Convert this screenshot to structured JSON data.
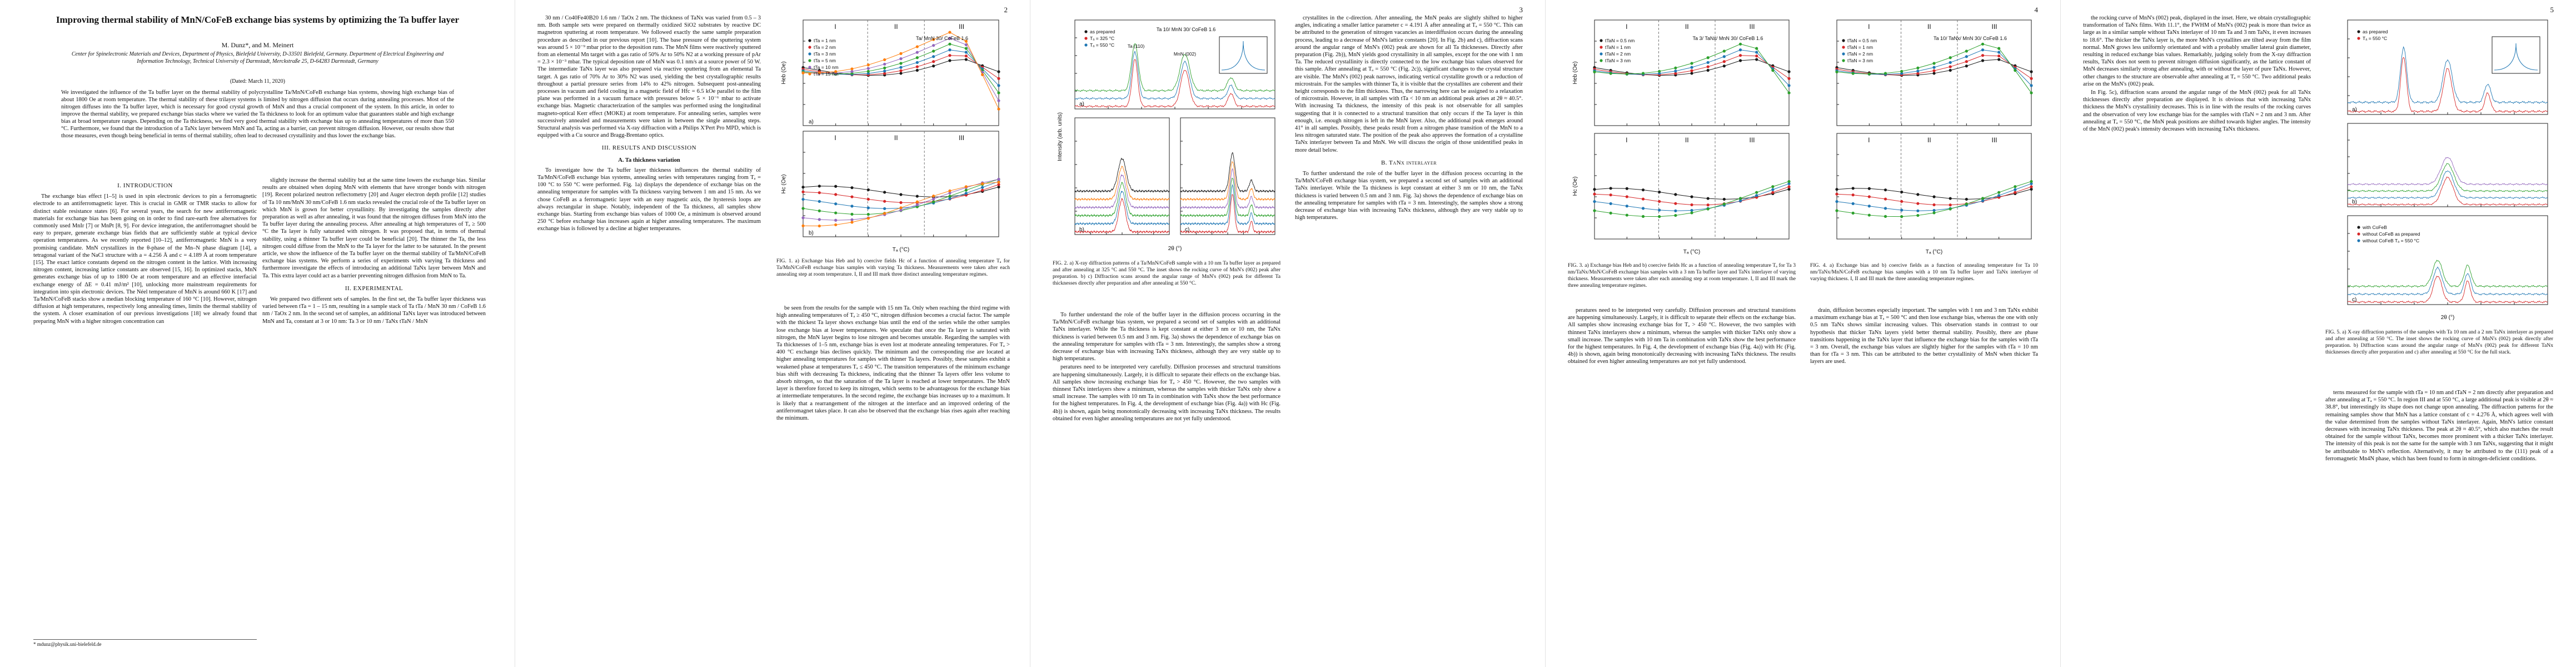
{
  "arxiv_id": "arXiv:2005.05166v1 [cond-mat.mtrl-sci] 11 May 2020",
  "page_numbers": [
    "2",
    "3",
    "4",
    "5"
  ],
  "page1": {
    "title": "Improving thermal stability of MnN/CoFeB exchange bias systems by optimizing the Ta buffer layer",
    "authors": "M. Dunz*, and M. Meinert",
    "affiliations": "Center for Spinelectronic Materials and Devices, Department of Physics, Bielefeld University, D-33501 Bielefeld, Germany. Department of Electrical Engineering and Information Technology, Technical University of Darmstadt, Merckstraße 25, D-64283 Darmstadt, Germany",
    "dated": "(Dated: March 11, 2020)",
    "abstract": "We investigated the influence of the Ta buffer layer on the thermal stability of polycrystalline Ta/MnN/CoFeB exchange bias systems, showing high exchange bias of about 1800 Oe at room temperature. The thermal stability of these trilayer systems is limited by nitrogen diffusion that occurs during annealing processes. Most of the nitrogen diffuses into the Ta buffer layer, which is necessary for good crystal growth of MnN and thus a crucial component of the system. In this article, in order to improve the thermal stability, we prepared exchange bias stacks where we varied the Ta thickness to look for an optimum value that guarantees stable and high exchange bias at broad temperature ranges. Depending on the Ta thickness, we find very good thermal stability with exchange bias up to annealing temperatures of more than 550 °C. Furthermore, we found that the introduction of a TaNx layer between MnN and Ta, acting as a barrier, can prevent nitrogen diffusion. However, our results show that those measures, even though being beneficial in terms of thermal stability, often lead to decreased crystallinity and thus lower the exchange bias.",
    "sec_intro": "I. INTRODUCTION",
    "intro_p1": "The exchange bias effect [1–5] is used in spin electronic devices to pin a ferromagnetic electrode to an antiferromagnetic layer. This is crucial in GMR or TMR stacks to allow for distinct stable resistance states [6]. For several years, the search for new antiferromagnetic materials for exchange bias has been going on in order to find rare-earth free alternatives for commonly used MnIr [7] or MnPt [8, 9]. For device integration, the antiferromagnet should be easy to prepare, generate exchange bias fields that are sufficiently stable at typical device operation temperatures. As we recently reported [10–12], antiferromagnetic MnN is a very promising candidate. MnN crystallizes in the θ-phase of the Mn–N phase diagram [14], a tetragonal variant of the NaCl structure with a = 4.256 Å and c = 4.189 Å at room temperature [15]. The exact lattice constants depend on the nitrogen content in the lattice. With increasing nitrogen content, increasing lattice constants are observed [15, 16]. In optimized stacks, MnN generates exchange bias of up to 1800 Oe at room temperature and an effective interfacial exchange energy of ΔE = 0.41 mJ/m² [10], unlocking more mainstream requirements for integration into spin electronic devices. The Néel temperature of MnN is around 660 K [17] and Ta/MnN/CoFeB stacks show a median blocking temperature of 160 °C [10]. However, nitrogen diffusion at high temperatures, respectively long annealing times, limits the thermal stability of the system. A closer examination of our previous investigations [18] we already found that preparing MnN with a higher nitrogen concentration can",
    "col2_text": "slightly increase the thermal stability but at the same time lowers the exchange bias. Similar results are obtained when doping MnN with elements that have stronger bonds with nitrogen [19]. Recent polarized neutron reflectometry [20] and Auger electron depth profile [12] studies of Ta 10 nm/MnN 30 nm/CoFeB 1.6 nm stacks revealed the crucial role of the Ta buffer layer on which MnN is grown for better crystallinity. By investigating the samples directly after preparation as well as after annealing, it was found that the nitrogen diffuses from MnN into the Ta buffer layer during the annealing process. After annealing at high temperatures of Tₐ ≥ 500 °C the Ta layer is fully saturated with nitrogen. It was proposed that, in terms of thermal stability, using a thinner Ta buffer layer could be beneficial [20]. The thinner the Ta, the less nitrogen could diffuse from the MnN to the Ta layer for the latter to be saturated. In the present article, we show the influence of the Ta buffer layer on the thermal stability of Ta/MnN/CoFeB exchange bias systems. We perform a series of experiments with varying Ta thickness and furthermore investigate the effects of introducing an additional TaNx layer between MnN and Ta. This extra layer could act as a barrier preventing nitrogen diffusion from MnN to Ta.",
    "sec_exp": "II. EXPERIMENTAL",
    "exp_p1": "We prepared two different sets of samples. In the first set, the Ta buffer layer thickness was varied between tTa = 1 – 15 nm, resulting in a sample stack of Ta tTa / MnN 30 nm / CoFeB 1.6 nm / TaOx 2 nm. In the second set of samples, an additional TaNx layer was introduced between MnN and Ta, constant at 3 or 10 nm: Ta 3 or 10 nm / TaNx tTaN / MnN"
  },
  "page2": {
    "col1_text": "30 nm / Co40Fe40B20 1.6 nm / TaOx 2 nm. The thickness of TaNx was varied from 0.5 – 3 nm. Both sample sets were prepared on thermally oxidized SiO2 substrates by reactive DC magnetron sputtering at room temperature. We followed exactly the same sample preparation procedure as described in our previous report [10]. The base pressure of the sputtering system was around 5 × 10⁻⁹ mbar prior to the deposition runs. The MnN films were reactively sputtered from an elemental Mn target with a gas ratio of 50% Ar to 50% N2 at a working pressure of pAr = 2.3 × 10⁻³ mbar. The typical deposition rate of MnN was 0.1 nm/s at a source power of 50 W. The intermediate TaNx layer was also prepared via reactive sputtering from an elemental Ta target. A gas ratio of 70% Ar to 30% N2 was used, yielding the best crystallographic results throughout a partial pressure series from 14% to 42% nitrogen. Subsequent post-annealing processes in vacuum and field cooling in a magnetic field of Hfc = 6.5 kOe parallel to the film plane was performed in a vacuum furnace with pressures below 5 × 10⁻⁶ mbar to activate exchange bias. Magnetic characterization of the samples was performed using the longitudinal magneto-optical Kerr effect (MOKE) at room temperature. For annealing series, samples were successively annealed and measurements were taken in between the single annealing steps. Structural analysis was performed via X-ray diffraction with a Philips X'Pert Pro MPD, which is equipped with a Cu source and Bragg-Brentano optics.",
    "sec_results": "III. RESULTS AND DISCUSSION",
    "subsec_a": "A. Ta thickness variation",
    "col1_text2": "To investigate how the Ta buffer layer thickness influences the thermal stability of Ta/MnN/CoFeB exchange bias systems, annealing series with temperatures ranging from Tₐ = 100 °C to 550 °C were performed. Fig. 1a) displays the dependence of exchange bias on the annealing temperature for samples with Ta thickness varying between 1 nm and 15 nm. As we chose CoFeB as a ferromagnetic layer with an easy magnetic axis, the hysteresis loops are always rectangular in shape. Notably, independent of the Ta thickness, all samples show exchange bias. Starting from exchange bias values of 1000 Oe, a minimum is observed around 250 °C before exchange bias increases again at higher annealing temperatures. The maximum exchange bias is followed by a decline at higher temperatures.",
    "col2_text": "be seen from the results for the sample with 15 nm Ta. Only when reaching the third regime with high annealing temperatures of Tₐ ≥ 450 °C, nitrogen diffusion becomes a crucial factor. The sample with the thickest Ta layer shows exchange bias until the end of the series while the other samples lose exchange bias at lower temperatures. We speculate that once the Ta layer is saturated with nitrogen, the MnN layer begins to lose nitrogen and becomes unstable. Regarding the samples with Ta thicknesses of 1–5 nm, exchange bias is even lost at moderate annealing temperatures. For Tₐ > 400 °C exchange bias declines quickly. The minimum and the corresponding rise are located at higher annealing temperatures for samples with thinner Ta layers. Possibly, these samples exhibit a weakened phase at temperatures Tₐ ≤ 450 °C. The transition temperatures of the minimum exchange bias shift with decreasing Ta thickness, indicating that the thinner Ta layers offer less volume to absorb nitrogen, so that the saturation of the Ta layer is reached at lower temperatures. The MnN layer is therefore forced to keep its nitrogen, which seems to be advantageous for the exchange bias at intermediate temperatures. In the second regime, the exchange bias increases up to a maximum. It is likely that a rearrangement of the nitrogen at the interface and an improved ordering of the antiferromagnet takes place. It can also be observed that the exchange bias rises again after reaching the minimum."
  },
  "page3": {
    "col1_text": "crystallites in the c-direction. After annealing, the MnN peaks are slightly shifted to higher angles, indicating a smaller lattice parameter c = 4.191 Å after annealing at Tₐ = 550 °C. This can be attributed to the generation of nitrogen vacancies as interdiffusion occurs during the annealing process, leading to a decrease of MnN's lattice constants [20]. In Fig. 2b) and c), diffraction scans around the angular range of MnN's (002) peak are shown for all Ta thicknesses. Directly after preparation (Fig. 2b)), MnN yields good crystallinity in all samples, except for the one with 1 nm Ta. The reduced crystallinity is directly connected to the low exchange bias values observed for this sample. After annealing at Tₐ = 550 °C (Fig. 2c)), significant changes to the crystal structure are visible. The MnN's (002) peak narrows, indicating vertical crystallite growth or a reduction of microstrain. For the samples with thinner Ta, it is visible that the crystallites are coherent and their height corresponds to the film thickness. Thus, the narrowing here can be assigned to a relaxation of microstrain. However, in all samples with tTa < 10 nm an additional peak arises at 2θ ≈ 40.5°. With increasing Ta thickness, the intensity of this peak is not observable for all samples suggesting that it is connected to a structural transition that only occurs if the Ta layer is thin enough, i.e. enough nitrogen is left in the MnN layer. Also, the additional peak emerges around 41° in all samples. Possibly, these peaks result from a nitrogen phase transition of the MnN to a less nitrogen saturated state. The position of the peak also approves the formation of a crystalline TaNx interlayer between Ta and MnN. We will discuss the origin of those unidentified peaks in more detail below.",
    "sec_b": "B. TaNx interlayer",
    "col1_text2": "To further understand the role of the buffer layer in the diffusion process occurring in the Ta/MnN/CoFeB exchange bias system, we prepared a second set of samples with an additional TaNx interlayer. While the Ta thickness is kept constant at either 3 nm or 10 nm, the TaNx thickness is varied between 0.5 nm and 3 nm. Fig. 3a) shows the dependence of exchange bias on the annealing temperature for samples with tTa = 3 nm. Interestingly, the samples show a strong decrease of exchange bias with increasing TaNx thickness, although they are very stable up to high temperatures.",
    "col2_text": "peratures need to be interpreted very carefully. Diffusion processes and structural transitions are happening simultaneously. Largely, it is difficult to separate their effects on the exchange bias. All samples show increasing exchange bias for Tₐ > 450 °C. However, the two samples with thinnest TaNx interlayers show a minimum, whereas the samples with thicker TaNx only show a small increase. The samples with 10 nm Ta in combination with TaNx show the best performance for the highest temperatures. In Fig. 4, the development of exchange bias (Fig. 4a)) with Hc (Fig. 4b)) is shown, again being monotonically decreasing with increasing TaNx thickness. The results obtained for even higher annealing temperatures are not yet fully understood.",
    "col3_text": "drain, diffusion becomes especially important. The samples with 1 nm and 3 nm TaNx exhibit a maximum exchange bias at Tₐ = 500 °C and then lose exchange bias, whereas the one with only 0.5 nm TaNx shows similar increasing values. This observation stands in contrast to our hypothesis that thicker TaNx layers yield better thermal stability. Possibly, there are phase transitions happening in the TaNx layer that influence the exchange bias for the samples with tTa = 3 nm. Overall, the exchange bias values are slightly higher for the samples with tTa = 10 nm than for tTa = 3 nm. This can be attributed to the better crystallinity of MnN when thicker Ta layers are used."
  },
  "page4": {
    "col1_text": "the rocking curve of MnN's (002) peak, displayed in the inset. Here, we obtain crystallographic transformation of TaNx films. With 11.1°, the FWHM of MnN's (002) peak is more than twice as large as in a similar sample without TaNx interlayer of 10 nm Ta and 3 nm TaNx, it even increases to 18.6°. The thicker the TaNx layer is, the more MnN's crystallites are tilted away from the film normal. MnN grows less uniformly orientated and with a probably smaller lateral grain diameter, resulting in reduced exchange bias values. Remarkably, judging solely from the X-ray diffraction results, TaNx does not seem to prevent nitrogen diffusion significantly, as the lattice constant of MnN decreases similarly strong after annealing, with or without the layer of pure TaNx. However, other changes to the structure are observable after annealing at Tₐ = 550 °C. Two additional peaks arise on the MnN's (002) peak.",
    "col1_text2": "In Fig. 5c), diffraction scans around the angular range of the MnN (002) peak for all TaNx thicknesses directly after preparation are displayed. It is obvious that with increasing TaNx thickness the MnN's crystallinity decreases. This is in line with the results of the rocking curves and the observation of very low exchange bias for the samples with tTaN = 2 nm and 3 nm. After annealing at Tₐ = 550 °C, the MnN peak positions are shifted towards higher angles. The intensity of the MnN (002) peak's intensity decreases with increasing TaNx thickness.",
    "col2_text": "terns measured for the sample with tTa = 10 nm and tTaN = 2 nm directly after preparation and after annealing at Tₐ = 550 °C. In region III and at 550 °C, a large additional peak is visible at 2θ ≈ 38.8°, but interestingly its shape does not change upon annealing. The diffraction patterns for the remaining samples show that MnN has a lattice constant of c = 4.276 Å, which agrees well with the value determined from the samples without TaNx interlayer. Again, MnN's lattice constant decreases with increasing TaNx thickness. The peak at 2θ ≈ 40.5°, which also matches the result obtained for the sample without TaNx, becomes more prominent with a thicker TaNx interlayer. The intensity of this peak is not the same for the sample with 3 nm TaNx, suggesting that it might be attributable to MnN's reflection. Alternatively, it may be attributed to the (111) peak of a ferromagnetic Mn4N phase, which has been found to form in nitrogen-deficient conditions."
  },
  "figures": {
    "fig1": {
      "caption": "FIG. 1. a) Exchange bias Heb and b) coercive fields Hc of a function of annealing temperature Tₐ for Ta/MnN/CoFeB exchange bias samples with varying Ta thickness. Measurements were taken after each annealing step at room temperature. I, II and III mark three distinct annealing temperature regimes.",
      "regime_labels": [
        "I",
        "II",
        "III"
      ],
      "panel_labels": [
        "a)",
        "b)"
      ],
      "legend": [
        "tTa = 1 nm",
        "tTa = 2 nm",
        "tTa = 3 nm",
        "tTa = 5 nm",
        "tTa = 10 nm",
        "tTa = 15 nm"
      ],
      "stack_label": "Ta/ MnN 30/ CoFeB 1.6",
      "xlabel": "Tₐ (°C)",
      "ylabel_a": "Heb (Oe)",
      "ylabel_b": "Hc (Oe)"
    },
    "fig2": {
      "caption": "FIG. 2. a) X-ray diffraction patterns of a Ta/MnN/CoFeB sample with a 10 nm Ta buffer layer as prepared and after annealing at 325 °C and 550 °C. The inset shows the rocking curve of MnN's (002) peak after preparation. b) c) Diffraction scans around the angular range of MnN's (002) peak for different Ta thicknesses directly after preparation and after annealing at 550 °C.",
      "panel_labels": [
        "a)",
        "b)",
        "c)"
      ],
      "legend_a": [
        "as prepared",
        "Tₐ = 325 °C",
        "Tₐ = 550 °C"
      ],
      "stack_label": "Ta 10/ MnN 30/ CoFeB 1.6",
      "peak_labels": [
        "Ta (110)",
        "MnN (002)"
      ],
      "xlabel": "2θ (°)",
      "ylabel": "Intensity (arb. units)"
    },
    "fig3": {
      "caption": "FIG. 3. a) Exchange bias Heb and b) coercive fields Hc as a function of annealing temperature Tₐ for Ta 3 nm/TaNx/MnN/CoFeB exchange bias samples with a 3 nm Ta buffer layer and TaNx interlayer of varying thickness. Measurements were taken after each annealing step at room temperature. I, II and III mark the three annealing temperature regimes.",
      "regime_labels": [
        "I",
        "II",
        "III"
      ],
      "legend": [
        "tTaN = 0.5 nm",
        "tTaN = 1 nm",
        "tTaN = 2 nm",
        "tTaN = 3 nm"
      ],
      "stack_label": "Ta 3/ TaNx/ MnN 30/ CoFeB 1.6",
      "xlabel": "Tₐ (°C)",
      "ylabel_a": "Heb (Oe)",
      "ylabel_b": "Hc (Oe)"
    },
    "fig4": {
      "caption": "FIG. 4. a) Exchange bias and b) coercive fields as a function of annealing temperature for Ta 10 nm/TaNx/MnN/CoFeB exchange bias samples with a 10 nm Ta buffer layer and TaNx interlayer of varying thickness. I, II and III mark the three annealing temperature regimes.",
      "regime_labels": [
        "I",
        "II",
        "III"
      ],
      "legend": [
        "tTaN = 0.5 nm",
        "tTaN = 1 nm",
        "tTaN = 2 nm",
        "tTaN = 3 nm"
      ],
      "stack_label": "Ta 10/ TaNx/ MnN 30/ CoFeB 1.6",
      "xlabel": "Tₐ (°C)"
    },
    "fig5": {
      "caption": "FIG. 5. a) X-ray diffraction patterns of the samples with Ta 10 nm and a 2 nm TaNx interlayer as prepared and after annealing at 550 °C. The inset shows the rocking curve of MnN's (002) peak directly after preparation. b) Diffraction scans around the angular range of MnN's (002) peak for different TaNx thicknesses directly after preparation and c) after annealing at 550 °C for the full stack.",
      "panel_labels": [
        "a)",
        "b)",
        "c)"
      ],
      "legend_a": [
        "as prepared",
        "Tₐ = 550 °C"
      ],
      "legend_c": [
        "with CoFeB",
        "without CoFeB as prepared",
        "without CoFeB Tₐ = 550 °C"
      ],
      "xlabel": "2θ (°)"
    }
  },
  "footnote": "* mdunz@physik.uni-bielefeld.de",
  "colors": {
    "s1": "#1a1a1a",
    "s2": "#d62728",
    "s3": "#1f77b4",
    "s4": "#2ca02c",
    "s5": "#9467bd",
    "s6": "#ff7f0e",
    "grid": "#cccccc"
  }
}
